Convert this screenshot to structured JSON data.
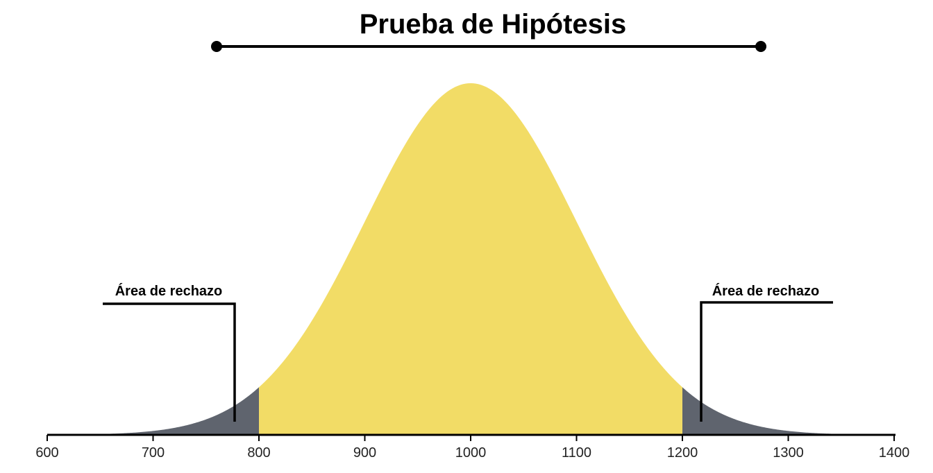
{
  "chart_data": {
    "type": "area",
    "title": "Prueba de Hipótesis",
    "xlabel": "",
    "ylabel": "",
    "x_ticks": [
      "600",
      "700",
      "800",
      "900",
      "1000",
      "1100",
      "1200",
      "1300",
      "1400"
    ],
    "xlim": [
      600,
      1400
    ],
    "distribution": {
      "kind": "normal",
      "mean": 1000,
      "sd": 100
    },
    "curve_x_range": [
      650,
      1350
    ],
    "acceptance_region": [
      800,
      1200
    ],
    "rejection_regions": [
      [
        650,
        800
      ],
      [
        1200,
        1350
      ]
    ],
    "annotations": [
      {
        "text": "Área de rechazo",
        "region": "left"
      },
      {
        "text": "Área de rechazo",
        "region": "right"
      }
    ],
    "colors": {
      "acceptance": "#f2dc66",
      "rejection": "#5f646e",
      "axis": "#000000",
      "bracket": "#000000"
    },
    "grid": false,
    "legend": "none"
  }
}
